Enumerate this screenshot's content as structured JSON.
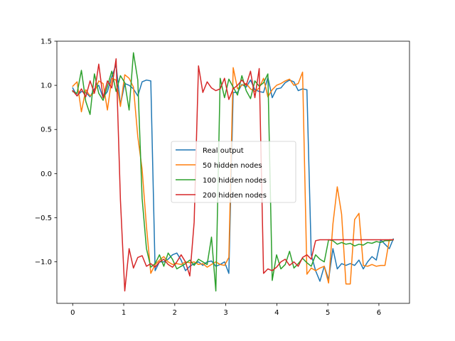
{
  "chart_data": {
    "type": "line",
    "title": "",
    "xlabel": "",
    "ylabel": "",
    "xlim": [
      -0.31,
      6.6
    ],
    "ylim": [
      -1.47,
      1.5
    ],
    "xticks": [
      0,
      1,
      2,
      3,
      4,
      5,
      6
    ],
    "yticks": [
      -1.0,
      -0.5,
      0.0,
      0.5,
      1.0,
      1.5
    ],
    "xtick_labels": [
      "0",
      "1",
      "2",
      "3",
      "4",
      "5",
      "6"
    ],
    "ytick_labels": [
      "−1.0",
      "−0.5",
      "0.0",
      "0.5",
      "1.0",
      "1.5"
    ],
    "grid": false,
    "legend_position": "center",
    "x": [
      0.0,
      0.085,
      0.17,
      0.255,
      0.34,
      0.425,
      0.51,
      0.595,
      0.68,
      0.765,
      0.85,
      0.935,
      1.02,
      1.105,
      1.19,
      1.275,
      1.36,
      1.445,
      1.53,
      1.615,
      1.7,
      1.785,
      1.87,
      1.955,
      2.04,
      2.125,
      2.21,
      2.295,
      2.38,
      2.465,
      2.55,
      2.635,
      2.72,
      2.805,
      2.89,
      2.975,
      3.06,
      3.145,
      3.23,
      3.315,
      3.4,
      3.485,
      3.57,
      3.655,
      3.74,
      3.825,
      3.91,
      3.995,
      4.08,
      4.165,
      4.25,
      4.335,
      4.42,
      4.505,
      4.59,
      4.675,
      4.76,
      4.845,
      4.93,
      5.015,
      5.1,
      5.185,
      5.27,
      5.355,
      5.44,
      5.525,
      5.61,
      5.695,
      5.78,
      5.865,
      5.95,
      6.035,
      6.12,
      6.205,
      6.283
    ],
    "series": [
      {
        "name": "Real output",
        "color": "#1f77b4",
        "values": [
          0.97,
          0.88,
          0.93,
          0.92,
          0.87,
          0.96,
          1.0,
          0.86,
          0.93,
          1.1,
          1.23,
          0.78,
          1.02,
          1.0,
          0.96,
          0.88,
          1.04,
          1.06,
          1.05,
          -1.1,
          -1.0,
          -1.0,
          -0.97,
          -0.92,
          -0.9,
          -0.98,
          -1.1,
          -1.05,
          -1.02,
          -1.0,
          -1.04,
          -1.0,
          -0.99,
          -1.05,
          -1.03,
          -1.0,
          -1.13,
          0.92,
          0.92,
          1.01,
          0.98,
          1.06,
          0.95,
          0.93,
          0.92,
          1.09,
          0.86,
          0.96,
          0.97,
          1.03,
          1.06,
          1.04,
          0.94,
          0.96,
          0.95,
          -0.92,
          -1.1,
          -1.22,
          -1.05,
          -1.2,
          -0.85,
          -1.08,
          -1.02,
          -1.04,
          -1.02,
          -1.04,
          -0.98,
          -1.08,
          -1.0,
          -0.94,
          -0.98,
          -0.75,
          -0.8,
          -0.85,
          -0.74
        ]
      },
      {
        "name": "50 hidden nodes",
        "color": "#ff7f0e",
        "values": [
          0.99,
          1.04,
          0.7,
          0.95,
          0.88,
          0.92,
          1.05,
          1.02,
          0.72,
          1.08,
          1.06,
          0.76,
          1.12,
          1.08,
          0.98,
          0.42,
          0.05,
          -0.6,
          -1.13,
          -1.03,
          -0.98,
          -0.94,
          -1.0,
          -1.03,
          -1.02,
          -1.03,
          -1.0,
          -1.01,
          -1.0,
          -1.03,
          -1.02,
          -1.06,
          -1.03,
          -1.0,
          -1.03,
          -1.04,
          -0.95,
          1.2,
          0.96,
          1.0,
          1.02,
          0.96,
          0.93,
          0.97,
          1.08,
          0.87,
          0.95,
          1.0,
          1.02,
          1.05,
          1.07,
          1.0,
          1.02,
          1.15,
          -1.14,
          -1.07,
          -1.1,
          -1.07,
          -1.05,
          -1.24,
          -0.57,
          -0.15,
          -0.46,
          -1.25,
          -1.25,
          -0.52,
          -0.45,
          -1.04,
          -1.05,
          -1.03,
          -1.05,
          -1.04,
          -1.04,
          -0.75,
          -0.75
        ]
      },
      {
        "name": "100 hidden nodes",
        "color": "#2ca02c",
        "values": [
          0.93,
          0.91,
          1.17,
          0.82,
          0.67,
          1.13,
          0.91,
          0.83,
          0.99,
          1.16,
          0.93,
          1.11,
          1.03,
          0.72,
          1.37,
          1.06,
          -0.28,
          -0.85,
          -1.06,
          -1.02,
          -0.92,
          -1.05,
          -0.9,
          -0.97,
          -1.08,
          -1.05,
          -1.02,
          -0.98,
          -1.04,
          -0.97,
          -1.0,
          -1.03,
          -0.72,
          -1.33,
          1.08,
          0.86,
          1.07,
          0.98,
          0.89,
          1.11,
          0.94,
          0.85,
          1.05,
          0.99,
          1.03,
          1.13,
          -1.21,
          -0.92,
          -1.08,
          -1.03,
          -0.88,
          -1.07,
          -1.02,
          -0.96,
          -1.01,
          -1.05,
          -0.92,
          -0.97,
          -1.0,
          -0.75,
          -0.76,
          -0.8,
          -0.78,
          -0.8,
          -0.79,
          -0.82,
          -0.8,
          -0.81,
          -0.78,
          -0.79,
          -0.77,
          -0.78,
          -0.76,
          -0.76,
          -0.75
        ]
      },
      {
        "name": "200 hidden nodes",
        "color": "#d62728",
        "values": [
          0.94,
          0.88,
          0.96,
          0.87,
          1.05,
          0.91,
          1.24,
          0.86,
          1.05,
          0.97,
          1.3,
          -0.3,
          -1.33,
          -0.85,
          -1.07,
          -0.95,
          -0.93,
          -1.05,
          -1.02,
          -1.06,
          -1.0,
          -0.97,
          -1.03,
          -1.06,
          -1.0,
          -0.92,
          -1.0,
          -1.16,
          -0.55,
          1.22,
          0.92,
          1.04,
          0.97,
          0.94,
          0.96,
          1.08,
          0.84,
          0.96,
          1.0,
          1.06,
          1.0,
          1.16,
          0.86,
          1.19,
          -1.13,
          -1.08,
          -1.1,
          -1.06,
          -1.0,
          -0.97,
          -1.04,
          -1.0,
          -1.05,
          -0.95,
          -0.92,
          -0.97,
          -0.76,
          -0.75,
          -0.75,
          -0.75,
          -0.75,
          -0.75,
          -0.75,
          -0.75,
          -0.75,
          -0.75,
          -0.75,
          -0.75,
          -0.75,
          -0.75,
          -0.75,
          -0.75,
          -0.75,
          -0.75,
          -0.75
        ]
      }
    ]
  }
}
